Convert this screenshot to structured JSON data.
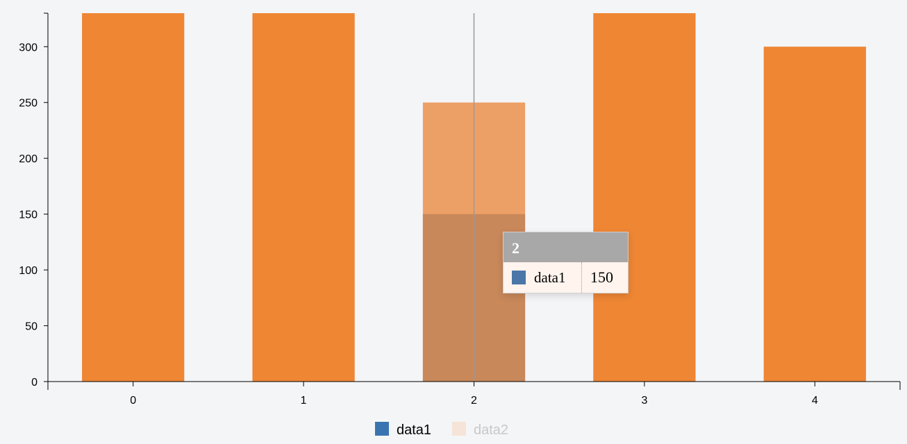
{
  "chart_data": {
    "type": "bar",
    "categories": [
      "0",
      "1",
      "2",
      "3",
      "4"
    ],
    "series": [
      {
        "name": "data1",
        "values": [
          null,
          null,
          150,
          null,
          null
        ],
        "color": "#c8885a"
      },
      {
        "name": "data2",
        "values": [
          330,
          330,
          250,
          330,
          300
        ],
        "color": "#ee8634"
      }
    ],
    "ylim": [
      0,
      330
    ],
    "yticks": [
      "0",
      "50",
      "100",
      "150",
      "200",
      "250",
      "300"
    ],
    "xticks": [
      "0",
      "1",
      "2",
      "3",
      "4"
    ],
    "highlight_color": "#eda066",
    "title": "",
    "xlabel": "",
    "ylabel": ""
  },
  "legend": {
    "items": [
      {
        "name": "data1",
        "color": "#3a74b0",
        "active": true
      },
      {
        "name": "data2",
        "color": "#f5e4d7",
        "active": false
      }
    ]
  },
  "tooltip": {
    "title": "2",
    "name": "data1",
    "value": "150",
    "swatch_color": "#4a76a8"
  },
  "colors": {
    "background": "#f4f5f7",
    "axis": "#000000",
    "hover_line": "#999999",
    "legend_inactive_text": "#c8c8c8"
  }
}
